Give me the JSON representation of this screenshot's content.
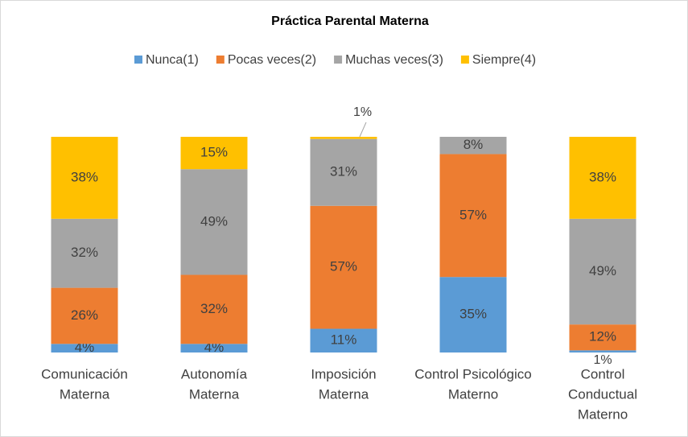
{
  "chart_data": {
    "type": "stacked-bar",
    "title": "Práctica Parental Materna",
    "categories": [
      [
        "Comunicación",
        "Materna"
      ],
      [
        "Autonomía",
        "Materna"
      ],
      [
        "Imposición",
        "Materna"
      ],
      [
        "Control Psicológico",
        "Materno"
      ],
      [
        "Control",
        "Conductual",
        "Materno"
      ]
    ],
    "series": [
      {
        "name": "Nunca(1)",
        "color": "#5b9bd5",
        "values": [
          4,
          4,
          11,
          35,
          1
        ],
        "value_labels": [
          "4%",
          "4%",
          "11%",
          "35%",
          "1%"
        ]
      },
      {
        "name": "Pocas veces(2)",
        "color": "#ed7d31",
        "values": [
          26,
          32,
          57,
          57,
          12
        ],
        "value_labels": [
          "26%",
          "32%",
          "57%",
          "57%",
          "12%"
        ]
      },
      {
        "name": "Muchas veces(3)",
        "color": "#a5a5a5",
        "values": [
          32,
          49,
          31,
          8,
          49
        ],
        "value_labels": [
          "32%",
          "49%",
          "31%",
          "8%",
          "49%"
        ]
      },
      {
        "name": "Siempre(4)",
        "color": "#ffc000",
        "values": [
          38,
          15,
          1,
          null,
          38
        ],
        "value_labels": [
          "38%",
          "15%",
          "1%",
          null,
          "38%"
        ]
      }
    ],
    "ylim": [
      0,
      100
    ],
    "legend": "top"
  }
}
